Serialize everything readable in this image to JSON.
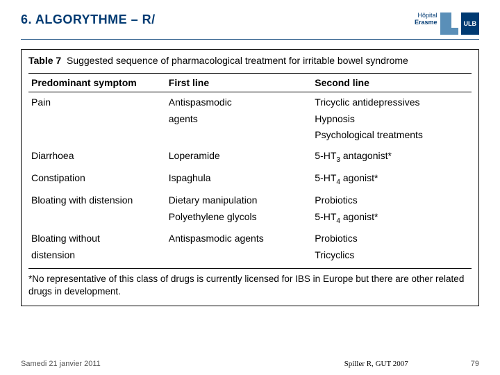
{
  "title": "6. ALGORYTHME – R/",
  "logo": {
    "line1": "Hôpital",
    "line2": "Erasme",
    "ulb": "ULB"
  },
  "table": {
    "caption_label": "Table 7",
    "caption_text": "Suggested sequence of pharmacological treatment for irritable bowel syndrome",
    "headers": [
      "Predominant symptom",
      "First line",
      "Second line"
    ],
    "rows": [
      {
        "c1": "Pain",
        "c2": [
          "Antispasmodic",
          "agents"
        ],
        "c3": [
          "Tricyclic antidepressives",
          "Hypnosis",
          "Psychological treatments"
        ]
      },
      {
        "c1": "Diarrhoea",
        "c2": [
          "Loperamide"
        ],
        "c3": [
          "5-HT3 antagonist*"
        ],
        "sub3": "3"
      },
      {
        "c1": "Constipation",
        "c2": [
          "Ispaghula"
        ],
        "c3": [
          "5-HT4 agonist*"
        ],
        "sub3": "4"
      },
      {
        "c1": "Bloating with distension",
        "c2": [
          "Dietary manipulation",
          "Polyethylene glycols"
        ],
        "c3": [
          "Probiotics",
          "5-HT4 agonist*"
        ],
        "sub3b": "4"
      },
      {
        "c1": "Bloating without distension",
        "c2": [
          "Antispasmodic agents"
        ],
        "c3": [
          "Probiotics",
          "Tricyclics"
        ]
      }
    ],
    "footnote": "*No representative of this class of drugs is currently licensed for IBS in Europe but there are other related drugs in development."
  },
  "footer": {
    "date": "Samedi 21 janvier 2011",
    "citation": "Spiller R, GUT 2007",
    "page": "79"
  }
}
